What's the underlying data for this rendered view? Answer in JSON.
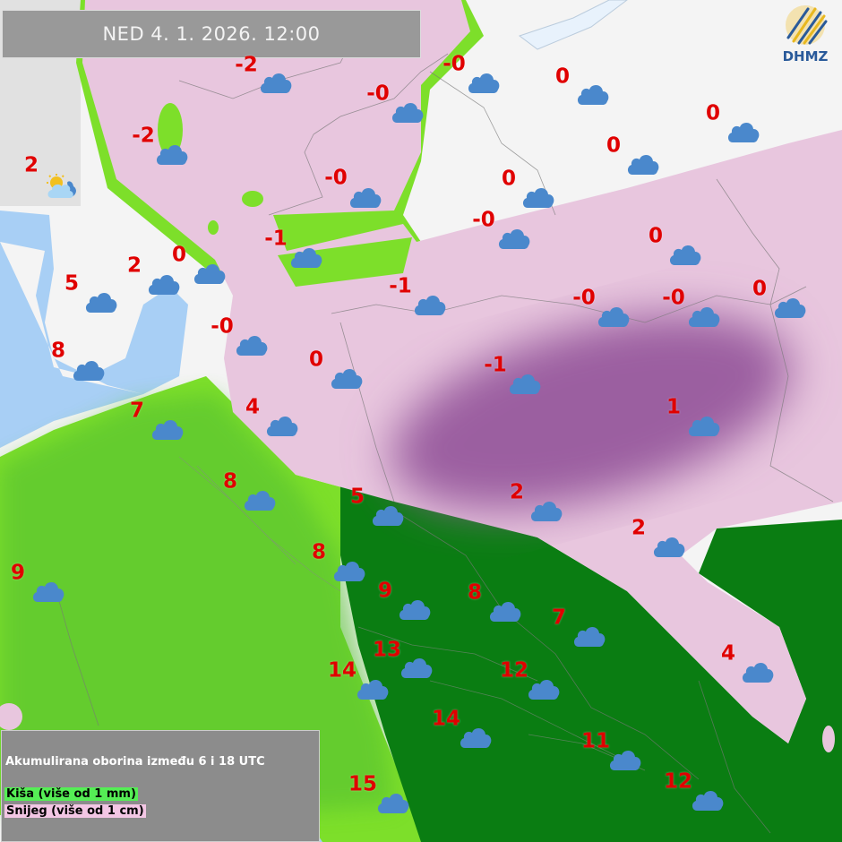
{
  "header": {
    "datetime": "NED  4. 1. 2026. 12:00"
  },
  "logo": {
    "text": "DHMZ"
  },
  "legend": {
    "title": "Akumulirana oborina između 6 i 18 UTC",
    "rain_label": "Kiša (više od 1 mm)",
    "snow_label": "Snijeg (više od 1 cm)"
  },
  "colors": {
    "rain": "#7ddf2a",
    "heavy_rain": "#0a7d12",
    "snow": "#e8c6de",
    "heavy_snow": "#9b5ea0",
    "sea": "#a8cff5",
    "temperature": "#e00000",
    "cloud": "#4a88cc"
  },
  "stations": [
    {
      "temp": "-2",
      "icon": "cloud-icon"
    },
    {
      "temp": "-0",
      "icon": "cloud-icon"
    },
    {
      "temp": "-0",
      "icon": "cloud-icon"
    },
    {
      "temp": "0",
      "icon": "cloud-icon"
    },
    {
      "temp": "0",
      "icon": "cloud-icon"
    },
    {
      "temp": "0",
      "icon": "cloud-icon"
    },
    {
      "temp": "-2",
      "icon": "cloud-icon"
    },
    {
      "temp": "2",
      "icon": "sun-cloud-icon"
    },
    {
      "temp": "-0",
      "icon": "cloud-icon"
    },
    {
      "temp": "0",
      "icon": "cloud-icon"
    },
    {
      "temp": "-0",
      "icon": "cloud-icon"
    },
    {
      "temp": "0",
      "icon": "cloud-icon"
    },
    {
      "temp": "-1",
      "icon": "cloud-icon"
    },
    {
      "temp": "2",
      "icon": "cloud-icon"
    },
    {
      "temp": "0",
      "icon": "cloud-icon"
    },
    {
      "temp": "5",
      "icon": "cloud-icon"
    },
    {
      "temp": "-1",
      "icon": "cloud-icon"
    },
    {
      "temp": "-0",
      "icon": "cloud-icon"
    },
    {
      "temp": "-0",
      "icon": "cloud-icon"
    },
    {
      "temp": "0",
      "icon": "cloud-icon"
    },
    {
      "temp": "-0",
      "icon": "cloud-icon"
    },
    {
      "temp": "8",
      "icon": "cloud-icon"
    },
    {
      "temp": "0",
      "icon": "cloud-icon"
    },
    {
      "temp": "-1",
      "icon": "cloud-icon"
    },
    {
      "temp": "7",
      "icon": "cloud-icon"
    },
    {
      "temp": "4",
      "icon": "cloud-icon"
    },
    {
      "temp": "1",
      "icon": "cloud-icon"
    },
    {
      "temp": "8",
      "icon": "cloud-icon"
    },
    {
      "temp": "5",
      "icon": "cloud-icon"
    },
    {
      "temp": "2",
      "icon": "cloud-icon"
    },
    {
      "temp": "2",
      "icon": "cloud-icon"
    },
    {
      "temp": "9",
      "icon": "cloud-icon"
    },
    {
      "temp": "8",
      "icon": "cloud-icon"
    },
    {
      "temp": "9",
      "icon": "cloud-icon"
    },
    {
      "temp": "8",
      "icon": "cloud-icon"
    },
    {
      "temp": "7",
      "icon": "cloud-icon"
    },
    {
      "temp": "13",
      "icon": "cloud-icon"
    },
    {
      "temp": "14",
      "icon": "cloud-icon"
    },
    {
      "temp": "12",
      "icon": "cloud-icon"
    },
    {
      "temp": "4",
      "icon": "cloud-icon"
    },
    {
      "temp": "14",
      "icon": "cloud-icon"
    },
    {
      "temp": "11",
      "icon": "cloud-icon"
    },
    {
      "temp": "12",
      "icon": "cloud-icon"
    },
    {
      "temp": "15",
      "icon": "cloud-icon"
    }
  ]
}
